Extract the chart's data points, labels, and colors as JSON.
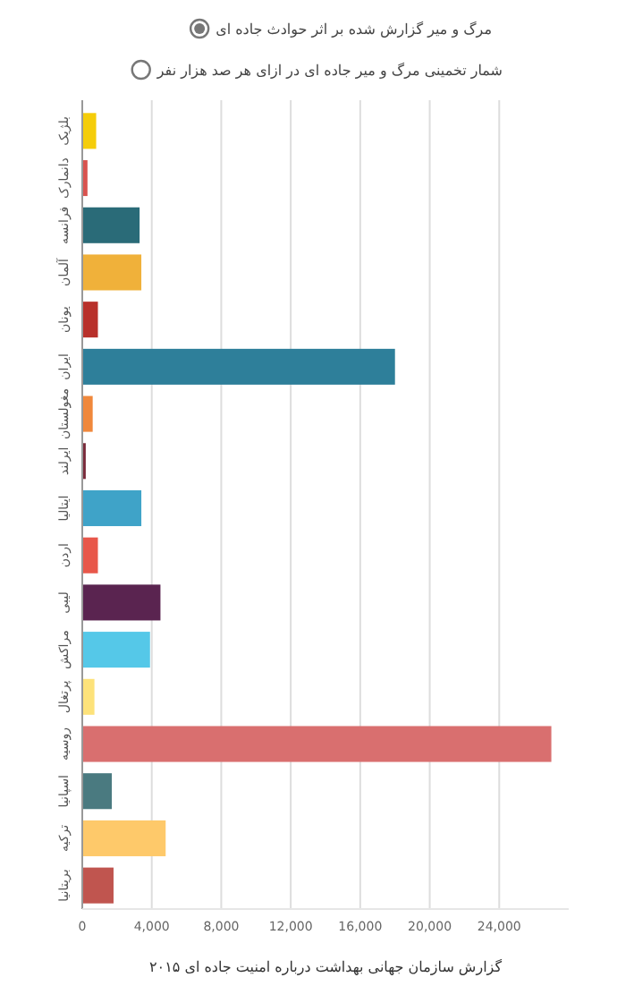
{
  "chart_data": {
    "type": "bar",
    "orientation": "horizontal",
    "xlabel": "گزارش سازمان جهانی بهداشت درباره امنیت جاده ای ۲۰۱۵",
    "annotations": [
      "مرگ و میر گزارش شده بر اثر حوادث جاده ای",
      "شمار تخمینی مرگ و میر جاده ای در ازای هر صد هزار نفر"
    ],
    "categories": [
      "بلژیک",
      "دانمارک",
      "فرانسه",
      "آلمان",
      "یونان",
      "ایران",
      "مغولستان",
      "ایرلند",
      "ایتالیا",
      "اردن",
      "لیبی",
      "مراکش",
      "پرتغال",
      "روسیه",
      "اسپانیا",
      "ترکیه",
      "بریتانیا"
    ],
    "values": [
      800,
      300,
      3300,
      3400,
      900,
      18000,
      600,
      200,
      3400,
      900,
      4500,
      3900,
      700,
      27000,
      1700,
      4800,
      1800
    ],
    "colors": [
      "#f5cd0a",
      "#d9534f",
      "#2a6b78",
      "#f0b13a",
      "#b8302a",
      "#2e7f9a",
      "#f0883c",
      "#7a2a3a",
      "#3fa3c8",
      "#e8574a",
      "#5a2450",
      "#55c8e8",
      "#fde27a",
      "#d96f6f",
      "#4a7a80",
      "#fec96a",
      "#c0554f"
    ],
    "xlim": [
      0,
      28000
    ],
    "xticks": [
      0,
      {
        "value": 4000,
        "label": "4,000"
      },
      {
        "value": 8000,
        "label": "8,000"
      },
      {
        "value": 12000,
        "label": "12,000"
      },
      {
        "value": 16000,
        "label": "16,000"
      },
      {
        "value": 20000,
        "label": "20,000"
      },
      {
        "value": 24000,
        "label": "24,000"
      }
    ],
    "grid": "x"
  }
}
